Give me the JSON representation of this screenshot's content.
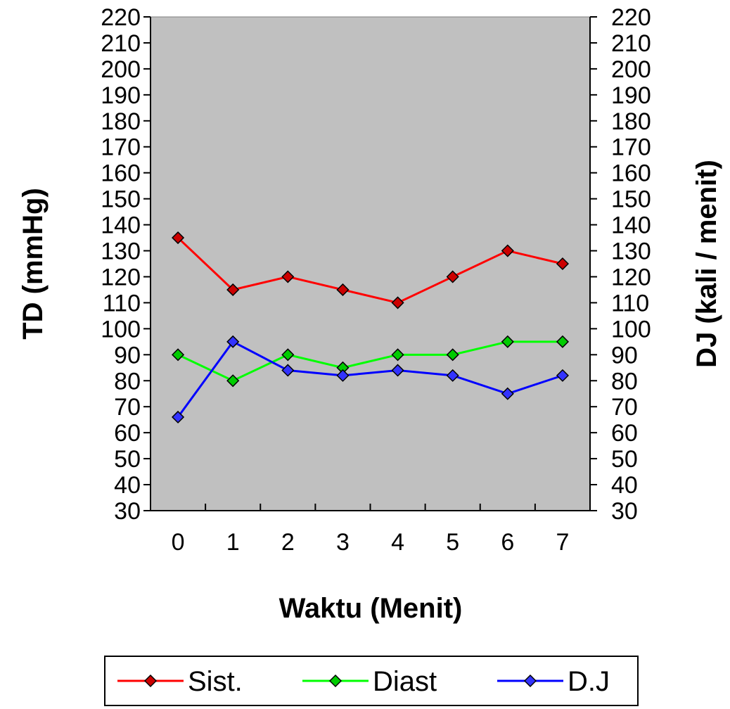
{
  "chart_data": {
    "type": "line",
    "title": "",
    "xlabel": "Waktu (Menit)",
    "ylabel": "TD (mmHg)",
    "ylabel_right": "DJ (kali / menit)",
    "ylim": [
      30,
      220
    ],
    "y_ticks": [
      30,
      40,
      50,
      60,
      70,
      80,
      90,
      100,
      110,
      120,
      130,
      140,
      150,
      160,
      170,
      180,
      190,
      200,
      210,
      220
    ],
    "categories": [
      "0",
      "1",
      "2",
      "3",
      "4",
      "5",
      "6",
      "7"
    ],
    "series": [
      {
        "name": "Sist.",
        "color": "#ff0000",
        "marker_fill": "#cc0000",
        "values": [
          135,
          115,
          120,
          115,
          110,
          120,
          130,
          125
        ]
      },
      {
        "name": "Diast",
        "color": "#00ff00",
        "marker_fill": "#00cc00",
        "values": [
          90,
          80,
          90,
          85,
          90,
          90,
          95,
          95
        ]
      },
      {
        "name": "D.J",
        "color": "#0000ff",
        "marker_fill": "#3333ff",
        "values": [
          66,
          95,
          84,
          82,
          84,
          82,
          75,
          82
        ]
      }
    ],
    "plot_background": "#c0c0c0",
    "grid": false,
    "legend_position": "bottom"
  }
}
